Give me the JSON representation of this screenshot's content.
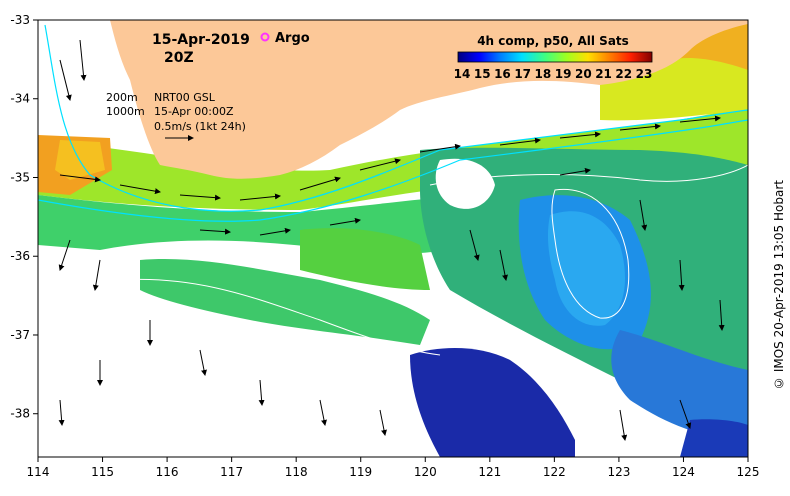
{
  "map": {
    "date_label": "15-Apr-2019",
    "time_label": "20Z",
    "argo_label": "Argo",
    "argo_marker_color": "#ff33ff",
    "isobath_labels": [
      "200m",
      "1000m"
    ],
    "product_lines": [
      "NRT00 GSL",
      "15-Apr 00:00Z",
      "0.5m/s (1kt 24h)"
    ],
    "colorbar": {
      "title": "4h comp, p50, All Sats",
      "ticks": [
        "14",
        "15",
        "16",
        "17",
        "18",
        "19",
        "20",
        "21",
        "22",
        "23"
      ],
      "colors": [
        "#00007f",
        "#0000ff",
        "#0080ff",
        "#00e0ff",
        "#40ff80",
        "#a0ff20",
        "#ffe000",
        "#ff8000",
        "#ff2000",
        "#800000"
      ]
    },
    "land_color": "#fcc898",
    "x_ticks": [
      "114",
      "115",
      "116",
      "117",
      "118",
      "119",
      "120",
      "121",
      "122",
      "123",
      "124",
      "125"
    ],
    "y_ticks": [
      "-33",
      "-34",
      "-35",
      "-36",
      "-37",
      "-38"
    ],
    "credit": "© IMOS 20-Apr-2019 13:05 Hobart"
  }
}
